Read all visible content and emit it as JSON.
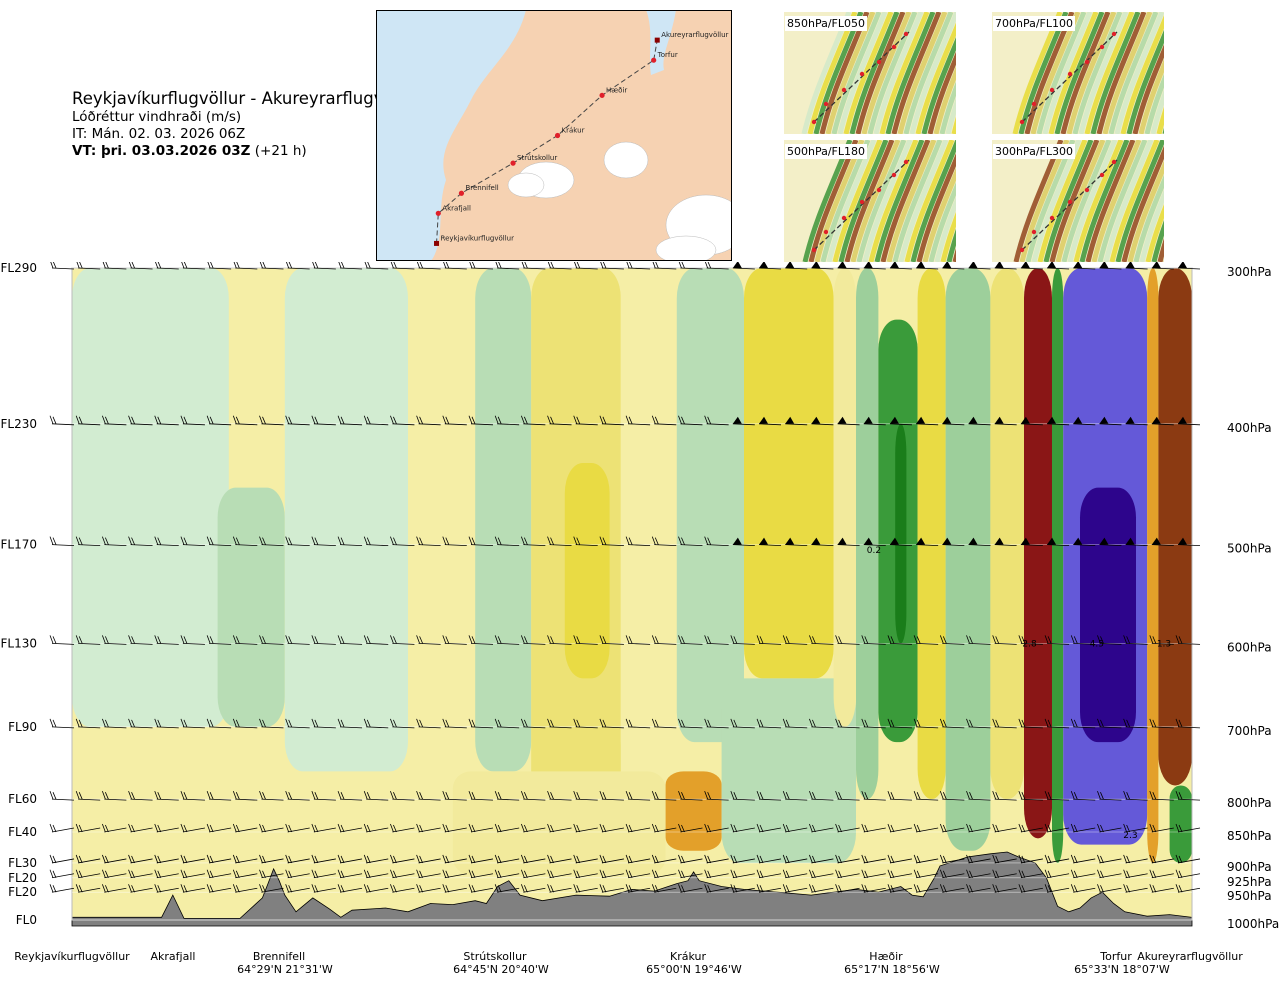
{
  "header": {
    "title": "Reykjavíkurflugvöllur - Akureyrarflugvöllur",
    "subtitle": "Lóðréttur vindhraði (m/s)",
    "init_time": "IT: Mán. 02. 03. 2026 06Z",
    "valid_prefix": "VT: þri. 03.03.2026 03Z",
    "lead": "(+21 h)"
  },
  "route_map": {
    "points": [
      {
        "name": "Reykjavíkurflugvöllur",
        "fx": 0.17,
        "fy": 0.93
      },
      {
        "name": "Akrafjall",
        "fx": 0.175,
        "fy": 0.81
      },
      {
        "name": "Brennifell",
        "fx": 0.24,
        "fy": 0.73
      },
      {
        "name": "Strútskollur",
        "fx": 0.385,
        "fy": 0.61
      },
      {
        "name": "Krákur",
        "fx": 0.51,
        "fy": 0.5
      },
      {
        "name": "Hæðir",
        "fx": 0.635,
        "fy": 0.34
      },
      {
        "name": "Torfur",
        "fx": 0.78,
        "fy": 0.2
      },
      {
        "name": "Akureyrarflugvöllur",
        "fx": 0.79,
        "fy": 0.12
      }
    ],
    "colors": {
      "sea": "#cfe6f5",
      "land": "#f6d2b2",
      "glacier": "#ffffff"
    }
  },
  "mini_maps": [
    {
      "label": "850hPa/FL050"
    },
    {
      "label": "700hPa/FL100"
    },
    {
      "label": "500hPa/FL180"
    },
    {
      "label": "300hPa/FL300"
    }
  ],
  "chart_data": {
    "type": "heatmap",
    "variable": "Lóðréttur vindhraði (m/s)",
    "levels": [
      {
        "fl": "FL290",
        "hpa": "300hPa",
        "p": 300
      },
      {
        "fl": "FL230",
        "hpa": "400hPa",
        "p": 400
      },
      {
        "fl": "FL170",
        "hpa": "500hPa",
        "p": 500
      },
      {
        "fl": "FL130",
        "hpa": "600hPa",
        "p": 600
      },
      {
        "fl": "FL90",
        "hpa": "700hPa",
        "p": 700
      },
      {
        "fl": "FL60",
        "hpa": "800hPa",
        "p": 800
      },
      {
        "fl": "FL40",
        "hpa": "850hPa",
        "p": 850
      },
      {
        "fl": "FL30",
        "hpa": "900hPa",
        "p": 900
      },
      {
        "fl": "FL20",
        "hpa": "925hPa",
        "p": 925
      },
      {
        "fl": "FL20",
        "hpa": "950hPa",
        "p": 950
      },
      {
        "fl": "FL0",
        "hpa": "1000hPa",
        "p": 1000
      }
    ],
    "ylim": [
      1000,
      300
    ],
    "xlim": [
      0,
      1
    ],
    "stations": [
      {
        "name": "Reykjavíkurflugvöllur",
        "pos": 0.0,
        "coord": ""
      },
      {
        "name": "Akrafjall",
        "pos": 0.085,
        "coord": ""
      },
      {
        "name": "Brennifell",
        "pos": 0.187,
        "coord": "64°29'N 21°31'W"
      },
      {
        "name": "Strútskollur",
        "pos": 0.371,
        "coord": "64°45'N 20°40'W"
      },
      {
        "name": "Krákur",
        "pos": 0.556,
        "coord": "65°00'N 19°46'W"
      },
      {
        "name": "Hæðir",
        "pos": 0.76,
        "coord": "65°17'N 18°56'W"
      },
      {
        "name": "Torfur",
        "pos": 0.935,
        "coord": "65°33'N 18°07'W"
      },
      {
        "name": "Akureyrarflugvöllur",
        "pos": 1.0,
        "coord": ""
      }
    ],
    "bands": [
      {
        "x0": 0.0,
        "x1": 0.14,
        "p0": 300,
        "p1": 700,
        "value": -0.1
      },
      {
        "x0": 0.0,
        "x1": 0.34,
        "p0": 700,
        "p1": 1000,
        "value": 0.1
      },
      {
        "x0": 0.13,
        "x1": 0.19,
        "p0": 450,
        "p1": 700,
        "value": -0.2
      },
      {
        "x0": 0.19,
        "x1": 0.3,
        "p0": 300,
        "p1": 760,
        "value": -0.1
      },
      {
        "x0": 0.3,
        "x1": 0.36,
        "p0": 300,
        "p1": 700,
        "value": 0.1
      },
      {
        "x0": 0.36,
        "x1": 0.41,
        "p0": 300,
        "p1": 760,
        "value": -0.15
      },
      {
        "x0": 0.41,
        "x1": 0.49,
        "p0": 300,
        "p1": 820,
        "value": 0.25
      },
      {
        "x0": 0.44,
        "x1": 0.48,
        "p0": 430,
        "p1": 640,
        "value": 0.4
      },
      {
        "x0": 0.49,
        "x1": 0.54,
        "p0": 300,
        "p1": 760,
        "value": 0.1
      },
      {
        "x0": 0.54,
        "x1": 0.6,
        "p0": 300,
        "p1": 720,
        "value": -0.15
      },
      {
        "x0": 0.34,
        "x1": 0.53,
        "p0": 760,
        "p1": 920,
        "value": 0.15
      },
      {
        "x0": 0.53,
        "x1": 0.58,
        "p0": 760,
        "p1": 880,
        "value": 0.6
      },
      {
        "x0": 0.6,
        "x1": 0.68,
        "p0": 300,
        "p1": 640,
        "value": 0.4
      },
      {
        "x0": 0.58,
        "x1": 0.7,
        "p0": 640,
        "p1": 900,
        "value": -0.15
      },
      {
        "x0": 0.68,
        "x1": 0.7,
        "p0": 300,
        "p1": 700,
        "value": 0.15
      },
      {
        "x0": 0.7,
        "x1": 0.72,
        "p0": 300,
        "p1": 800,
        "value": -0.3
      },
      {
        "x0": 0.72,
        "x1": 0.755,
        "p0": 330,
        "p1": 720,
        "value": -0.9
      },
      {
        "x0": 0.735,
        "x1": 0.745,
        "p0": 400,
        "p1": 600,
        "value": -1.2
      },
      {
        "x0": 0.755,
        "x1": 0.78,
        "p0": 300,
        "p1": 800,
        "value": 0.3
      },
      {
        "x0": 0.78,
        "x1": 0.82,
        "p0": 300,
        "p1": 880,
        "value": -0.3
      },
      {
        "x0": 0.82,
        "x1": 0.85,
        "p0": 300,
        "p1": 800,
        "value": 0.25
      },
      {
        "x0": 0.85,
        "x1": 0.875,
        "p0": 300,
        "p1": 860,
        "value": 2.0
      },
      {
        "x0": 0.875,
        "x1": 0.885,
        "p0": 300,
        "p1": 900,
        "value": -0.8
      },
      {
        "x0": 0.885,
        "x1": 0.96,
        "p0": 300,
        "p1": 870,
        "value": -3.0
      },
      {
        "x0": 0.9,
        "x1": 0.95,
        "p0": 450,
        "p1": 720,
        "value": -4.5
      },
      {
        "x0": 0.96,
        "x1": 0.97,
        "p0": 300,
        "p1": 900,
        "value": 0.5
      },
      {
        "x0": 0.97,
        "x1": 1.0,
        "p0": 300,
        "p1": 780,
        "value": 1.5
      },
      {
        "x0": 0.98,
        "x1": 1.0,
        "p0": 780,
        "p1": 900,
        "value": -0.8
      }
    ],
    "annotations": [
      {
        "text": "0.2",
        "pos": 0.716,
        "p": 505
      },
      {
        "text": "2.8",
        "pos": 0.855,
        "p": 600
      },
      {
        "text": "4.5",
        "pos": 0.915,
        "p": 600
      },
      {
        "text": "1.3",
        "pos": 0.975,
        "p": 600
      },
      {
        "text": "2.3",
        "pos": 0.945,
        "p": 855
      }
    ],
    "terrain_p": [
      [
        0.0,
        995
      ],
      [
        0.08,
        995
      ],
      [
        0.085,
        975
      ],
      [
        0.09,
        955
      ],
      [
        0.1,
        997
      ],
      [
        0.15,
        997
      ],
      [
        0.17,
        960
      ],
      [
        0.175,
        935
      ],
      [
        0.18,
        910
      ],
      [
        0.185,
        930
      ],
      [
        0.19,
        955
      ],
      [
        0.2,
        985
      ],
      [
        0.215,
        960
      ],
      [
        0.23,
        980
      ],
      [
        0.24,
        995
      ],
      [
        0.25,
        982
      ],
      [
        0.28,
        978
      ],
      [
        0.3,
        985
      ],
      [
        0.32,
        970
      ],
      [
        0.34,
        972
      ],
      [
        0.36,
        965
      ],
      [
        0.37,
        970
      ],
      [
        0.38,
        940
      ],
      [
        0.39,
        930
      ],
      [
        0.4,
        955
      ],
      [
        0.42,
        965
      ],
      [
        0.45,
        955
      ],
      [
        0.48,
        957
      ],
      [
        0.5,
        945
      ],
      [
        0.52,
        948
      ],
      [
        0.54,
        935
      ],
      [
        0.55,
        930
      ],
      [
        0.555,
        915
      ],
      [
        0.56,
        930
      ],
      [
        0.58,
        940
      ],
      [
        0.6,
        945
      ],
      [
        0.63,
        950
      ],
      [
        0.66,
        955
      ],
      [
        0.68,
        950
      ],
      [
        0.7,
        945
      ],
      [
        0.72,
        950
      ],
      [
        0.74,
        940
      ],
      [
        0.75,
        955
      ],
      [
        0.76,
        958
      ],
      [
        0.77,
        925
      ],
      [
        0.775,
        905
      ],
      [
        0.8,
        890
      ],
      [
        0.82,
        885
      ],
      [
        0.835,
        882
      ],
      [
        0.845,
        890
      ],
      [
        0.86,
        900
      ],
      [
        0.87,
        925
      ],
      [
        0.88,
        975
      ],
      [
        0.89,
        985
      ],
      [
        0.9,
        978
      ],
      [
        0.91,
        960
      ],
      [
        0.92,
        950
      ],
      [
        0.93,
        970
      ],
      [
        0.94,
        985
      ],
      [
        0.96,
        993
      ],
      [
        0.98,
        990
      ],
      [
        1.0,
        995
      ]
    ],
    "wind_barbs_levels": [
      300,
      400,
      500,
      600,
      700,
      800,
      850,
      900,
      925,
      950
    ]
  }
}
